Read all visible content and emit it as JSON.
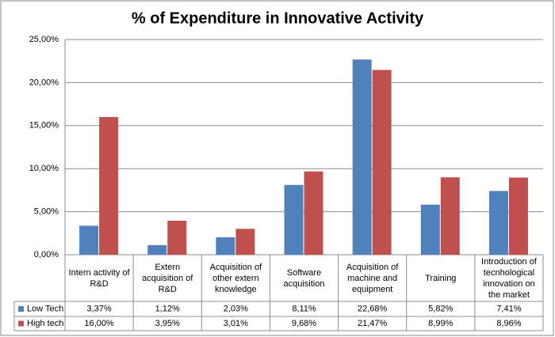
{
  "chart_data": {
    "type": "bar",
    "title": "% of Expenditure in Innovative Activity",
    "categories": [
      "Intern activity of R&D",
      "Extern acquisition of R&D",
      "Acquisition of other extern knowledge",
      "Software acquisition",
      "Acquisition of machine and equipment",
      "Training",
      "Introduction of tecnhological innovation on the market"
    ],
    "series": [
      {
        "name": "Low Tech",
        "color": "#4f81bd",
        "values": [
          3.37,
          1.12,
          2.03,
          8.11,
          22.68,
          5.82,
          7.41
        ],
        "value_labels": [
          "3,37%",
          "1,12%",
          "2,03%",
          "8,11%",
          "22,68%",
          "5,82%",
          "7,41%"
        ]
      },
      {
        "name": "High tech",
        "color": "#c0504d",
        "values": [
          16.0,
          3.95,
          3.01,
          9.68,
          21.47,
          8.99,
          8.96
        ],
        "value_labels": [
          "16,00%",
          "3,95%",
          "3,01%",
          "9,68%",
          "21,47%",
          "8,99%",
          "8,96%"
        ]
      }
    ],
    "ylim": [
      0,
      25
    ],
    "yticks": [
      {
        "value": 0,
        "label": "0,00%"
      },
      {
        "value": 5,
        "label": "5,00%"
      },
      {
        "value": 10,
        "label": "10,00%"
      },
      {
        "value": 15,
        "label": "15,00%"
      },
      {
        "value": 20,
        "label": "20,00%"
      },
      {
        "value": 25,
        "label": "25,00%"
      }
    ],
    "grid": true
  }
}
